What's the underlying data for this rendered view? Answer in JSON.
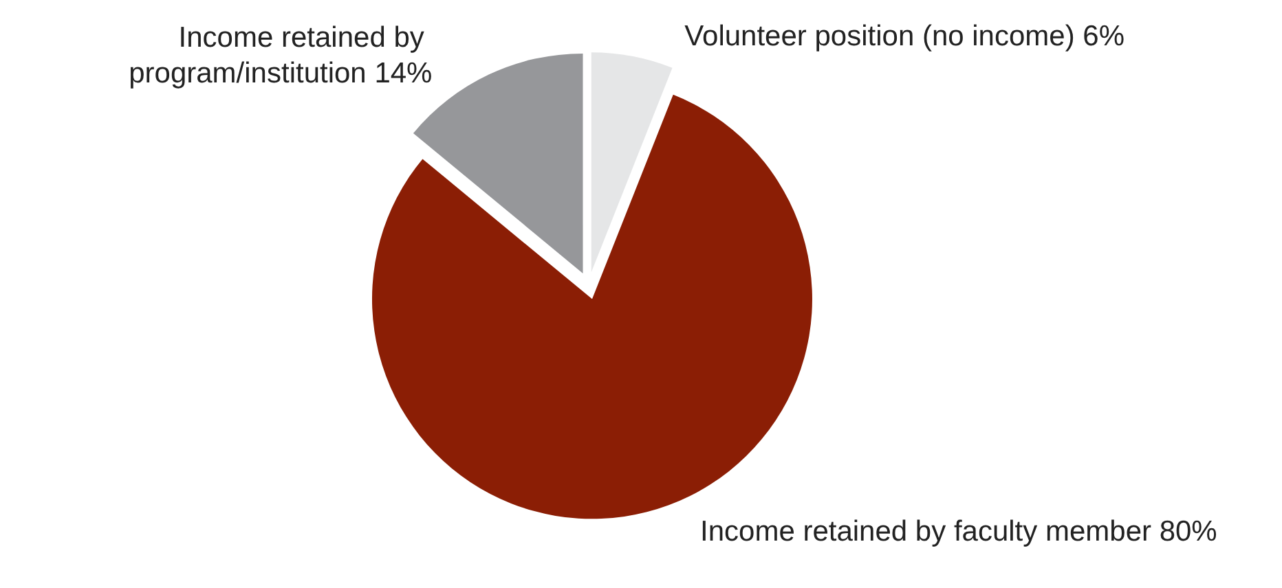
{
  "chart_data": {
    "type": "pie",
    "categories": [
      "Volunteer position (no income)",
      "Income retained by faculty member",
      "Income retained by program/institution"
    ],
    "values": [
      6,
      80,
      14
    ],
    "colors": [
      "#e5e6e7",
      "#8b1e05",
      "#96979a"
    ],
    "value_labels": [
      "6%",
      "80%",
      "14%"
    ],
    "legend": false
  }
}
